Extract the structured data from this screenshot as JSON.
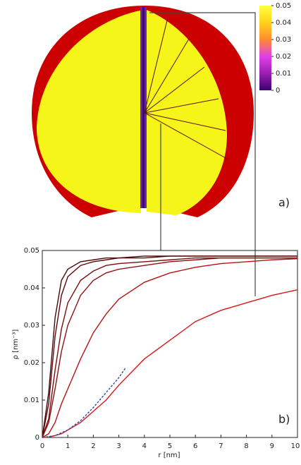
{
  "chart_data": [
    {
      "type": "colorbar",
      "label": "a)",
      "ylim": [
        0,
        0.05
      ],
      "yticks": [
        0,
        0.01,
        0.02,
        0.03,
        0.04,
        0.05
      ],
      "colormap": [
        "#3a0070",
        "#9b1fb0",
        "#e040e8",
        "#ff8a30",
        "#ffd21a",
        "#ffff40"
      ]
    },
    {
      "type": "line",
      "label": "b)",
      "xlabel": "r [nm]",
      "ylabel": "ρ [nm⁻³]",
      "x": [
        0,
        0.25,
        0.5,
        0.75,
        1,
        1.5,
        2,
        2.5,
        3,
        4,
        5,
        6,
        7,
        8,
        9,
        10
      ],
      "xlim": [
        0,
        10
      ],
      "xticks": [
        0,
        1,
        2,
        3,
        4,
        5,
        6,
        7,
        8,
        9,
        10
      ],
      "ylim": [
        0,
        0.05
      ],
      "yticks": [
        0,
        0.01,
        0.02,
        0.03,
        0.04,
        0.05
      ],
      "series": [
        {
          "color": "#4a0808",
          "values": [
            0,
            0.012,
            0.032,
            0.042,
            0.045,
            0.047,
            0.0475,
            0.048,
            0.048,
            0.0485,
            0.0485,
            0.0485,
            0.0485,
            0.0485,
            0.0485,
            0.0485
          ]
        },
        {
          "color": "#5a0a0a",
          "values": [
            0,
            0.009,
            0.027,
            0.038,
            0.043,
            0.046,
            0.047,
            0.0475,
            0.048,
            0.048,
            0.0485,
            0.0485,
            0.0485,
            0.0485,
            0.0485,
            0.0485
          ]
        },
        {
          "color": "#7a0c0c",
          "values": [
            0,
            0.005,
            0.018,
            0.029,
            0.036,
            0.042,
            0.0445,
            0.046,
            0.0465,
            0.047,
            0.0475,
            0.048,
            0.048,
            0.048,
            0.048,
            0.048
          ]
        },
        {
          "color": "#8e1010",
          "values": [
            0,
            0.004,
            0.013,
            0.023,
            0.03,
            0.038,
            0.042,
            0.044,
            0.045,
            0.046,
            0.047,
            0.0475,
            0.048,
            0.048,
            0.048,
            0.048
          ]
        },
        {
          "color": "#b81414",
          "values": [
            0,
            0.001,
            0.004,
            0.009,
            0.013,
            0.021,
            0.028,
            0.033,
            0.037,
            0.0415,
            0.044,
            0.0455,
            0.0465,
            0.047,
            0.0475,
            0.0478
          ]
        },
        {
          "color": "#d81818",
          "values": [
            0,
            0.0001,
            0.0005,
            0.001,
            0.002,
            0.004,
            0.007,
            0.01,
            0.014,
            0.021,
            0.026,
            0.031,
            0.034,
            0.036,
            0.038,
            0.0395
          ]
        },
        {
          "color": "#3344aa",
          "dashed": true,
          "x": [
            0,
            0.5,
            1,
            1.5,
            2,
            2.5,
            3,
            3.25
          ],
          "values": [
            0,
            0.0005,
            0.002,
            0.0045,
            0.008,
            0.012,
            0.016,
            0.0185
          ]
        }
      ]
    }
  ]
}
